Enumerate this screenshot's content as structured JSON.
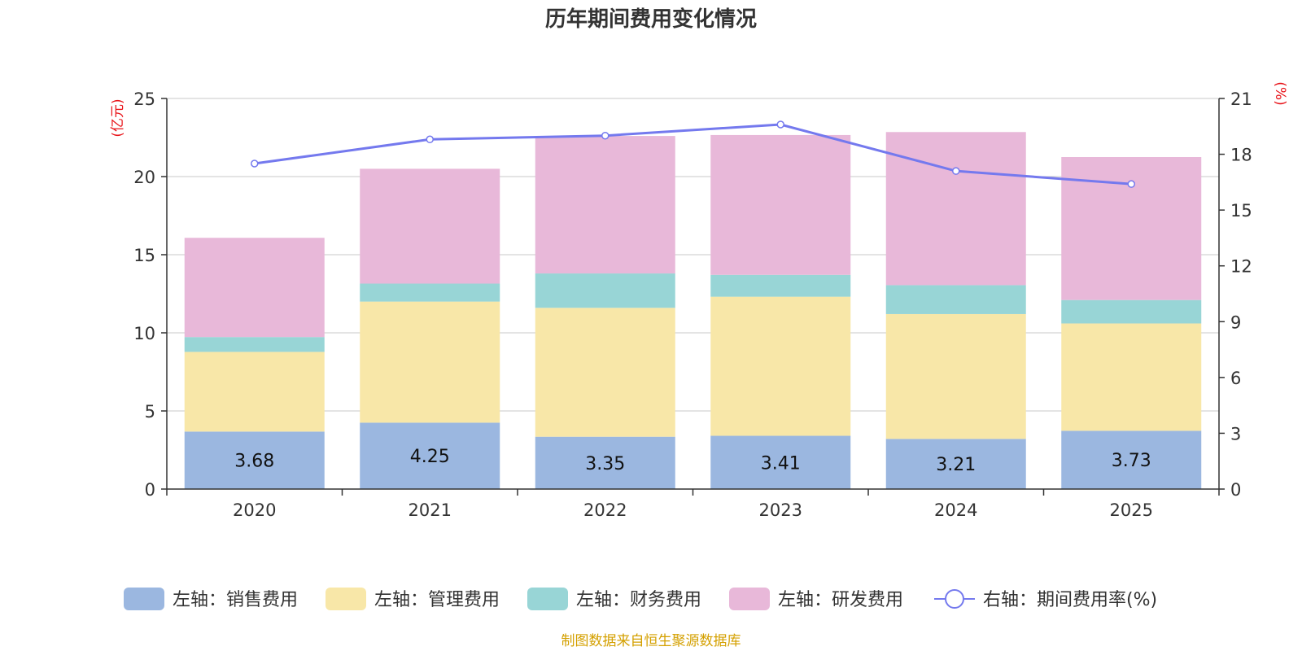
{
  "chart_data": {
    "type": "bar",
    "stacked": true,
    "title": "历年期间费用变化情况",
    "categories": [
      "2020",
      "2021",
      "2022",
      "2023",
      "2024",
      "2025"
    ],
    "left_axis": {
      "unit": "(亿元)",
      "ylim": [
        0,
        25
      ],
      "ticks": [
        0,
        5,
        10,
        15,
        20,
        25
      ]
    },
    "right_axis": {
      "unit": "(%)",
      "ylim": [
        0,
        21
      ],
      "ticks": [
        0,
        3,
        6,
        9,
        12,
        15,
        18,
        21
      ]
    },
    "grid": true,
    "series": [
      {
        "name": "左轴：销售费用",
        "axis": "left",
        "color": "#9bb7e0",
        "values": [
          3.68,
          4.25,
          3.35,
          3.41,
          3.21,
          3.73
        ],
        "show_labels": true
      },
      {
        "name": "左轴：管理费用",
        "axis": "left",
        "color": "#f8e7a8",
        "values": [
          5.1,
          7.75,
          8.25,
          8.9,
          7.99,
          6.87
        ]
      },
      {
        "name": "左轴：财务费用",
        "axis": "left",
        "color": "#98d5d6",
        "values": [
          0.95,
          1.15,
          2.2,
          1.4,
          1.85,
          1.5
        ]
      },
      {
        "name": "左轴：研发费用",
        "axis": "left",
        "color": "#e8b8d9",
        "values": [
          6.35,
          7.35,
          8.8,
          8.95,
          9.8,
          9.15
        ]
      }
    ],
    "line_series": [
      {
        "name": "右轴：期间费用率(%)",
        "axis": "right",
        "color": "#7479ee",
        "values": [
          17.5,
          18.8,
          19.0,
          19.6,
          17.1,
          16.4
        ]
      }
    ],
    "legend_position": "bottom",
    "source": "制图数据来自恒生聚源数据库"
  }
}
